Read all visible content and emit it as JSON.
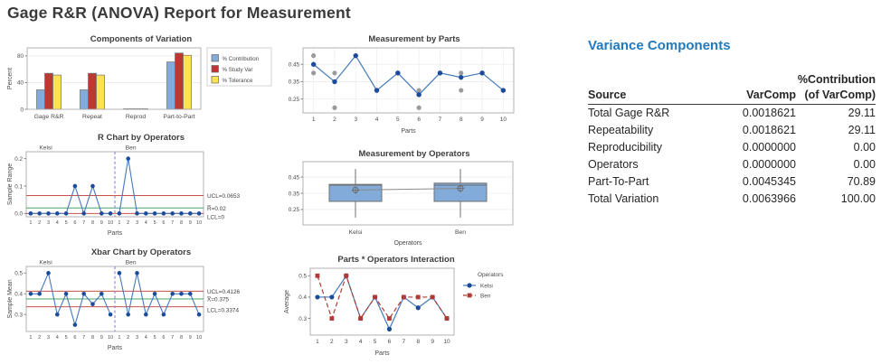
{
  "page_title": "Gage R&R (ANOVA) Report for Measurement",
  "colors": {
    "limit_line_red": "#C8504A",
    "center_line_green": "#48A464",
    "panel_separator_purple": "#8F7FD4",
    "mean_line_blue": "#4579BD",
    "point_navy": "#1A4C9B",
    "measurement_gray": "#9B9B9B",
    "box_fill_blue": "#82ABD9",
    "table_title_blue": "#2279BC"
  },
  "chart_data": [
    {
      "id": "components_of_variation",
      "type": "bar",
      "title": "Components of Variation",
      "ylabel": "Percent",
      "categories": [
        "Gage R&R",
        "Repeat",
        "Reprod",
        "Part-to-Part"
      ],
      "series": [
        {
          "name": "% Contribution",
          "color": "#82ABD9",
          "values": [
            29.11,
            29.11,
            0.0,
            70.89
          ]
        },
        {
          "name": "% Study Var",
          "color": "#C03730",
          "values": [
            53.95,
            53.95,
            0.2,
            84.2
          ]
        },
        {
          "name": "% Tolerance",
          "color": "#FFE152",
          "values": [
            51.3,
            51.3,
            0.2,
            80.9
          ]
        }
      ],
      "yticks": [
        0,
        40,
        80
      ],
      "ytick_labels": [
        "0",
        "40",
        "80"
      ],
      "ylim": [
        0,
        92
      ],
      "legend_position": "right"
    },
    {
      "id": "measurement_by_parts",
      "type": "scatter-line",
      "title": "Measurement by Parts",
      "xlabel": "Parts",
      "x": [
        1,
        2,
        3,
        4,
        5,
        6,
        7,
        8,
        9,
        10
      ],
      "measurements": [
        [
          0.4,
          0.5
        ],
        [
          0.2,
          0.4
        ],
        [
          0.5
        ],
        [
          0.3
        ],
        [
          0.4
        ],
        [
          0.2,
          0.3
        ],
        [
          0.4
        ],
        [
          0.3,
          0.4
        ],
        [
          0.4
        ],
        [
          0.3
        ]
      ],
      "means": [
        0.45,
        0.35,
        0.5,
        0.3,
        0.4,
        0.275,
        0.4,
        0.375,
        0.4,
        0.3
      ],
      "yticks": [
        0.25,
        0.35,
        0.45
      ],
      "ytick_labels": [
        "0.25",
        "0.35",
        "0.45"
      ],
      "ylim": [
        0.17,
        0.545
      ],
      "grid": true
    },
    {
      "id": "r_chart_by_operators",
      "type": "control",
      "title": "R Chart by Operators",
      "ylabel": "Sample Range",
      "xlabel": "Parts",
      "panels": [
        "Kelsi",
        "Ben"
      ],
      "x_per_panel": [
        1,
        2,
        3,
        4,
        5,
        6,
        7,
        8,
        9,
        10
      ],
      "series": [
        [
          0,
          0,
          0,
          0,
          0,
          0.1,
          0,
          0.1,
          0,
          0
        ],
        [
          0,
          0.2,
          0,
          0,
          0,
          0,
          0,
          0,
          0,
          0
        ]
      ],
      "ucl": 0.0653,
      "center": 0.02,
      "lcl": 0,
      "limit_labels": [
        "UCL=0.0653",
        "R̅=0.02",
        "LCL=0"
      ],
      "yticks": [
        0.0,
        0.1,
        0.2
      ],
      "ytick_labels": [
        "0.0",
        "0.1",
        "0.2"
      ],
      "ylim": [
        -0.012,
        0.225
      ]
    },
    {
      "id": "xbar_chart_by_operators",
      "type": "control",
      "title": "Xbar Chart by Operators",
      "ylabel": "Sample Mean",
      "xlabel": "Parts",
      "panels": [
        "Kelsi",
        "Ben"
      ],
      "x_per_panel": [
        1,
        2,
        3,
        4,
        5,
        6,
        7,
        8,
        9,
        10
      ],
      "series": [
        [
          0.4,
          0.4,
          0.5,
          0.3,
          0.4,
          0.25,
          0.4,
          0.35,
          0.4,
          0.3
        ],
        [
          0.5,
          0.3,
          0.5,
          0.3,
          0.4,
          0.3,
          0.4,
          0.4,
          0.4,
          0.3
        ]
      ],
      "ucl": 0.4126,
      "center": 0.375,
      "lcl": 0.3374,
      "limit_labels": [
        "UCL=0.4126",
        "X̅=0.375",
        "LCL=0.3374"
      ],
      "yticks": [
        0.3,
        0.4,
        0.5
      ],
      "ytick_labels": [
        "0.3",
        "0.4",
        "0.5"
      ],
      "ylim": [
        0.218,
        0.532
      ]
    },
    {
      "id": "measurement_by_operators",
      "type": "boxplot",
      "title": "Measurement by Operators",
      "xlabel": "Operators",
      "categories": [
        "Kelsi",
        "Ben"
      ],
      "boxes": [
        {
          "whisker_low": 0.2,
          "q1": 0.3,
          "median": 0.4,
          "q3": 0.405,
          "whisker_high": 0.5,
          "mean": 0.37
        },
        {
          "whisker_low": 0.2,
          "q1": 0.3,
          "median": 0.4,
          "q3": 0.4125,
          "whisker_high": 0.5,
          "mean": 0.38
        }
      ],
      "yticks": [
        0.25,
        0.35,
        0.45
      ],
      "ytick_labels": [
        "0.25",
        "0.35",
        "0.45"
      ],
      "ylim": [
        0.155,
        0.545
      ]
    },
    {
      "id": "parts_operators_interaction",
      "type": "line",
      "title": "Parts * Operators Interaction",
      "ylabel": "Average",
      "xlabel": "Parts",
      "x": [
        1,
        2,
        3,
        4,
        5,
        6,
        7,
        8,
        9,
        10
      ],
      "legend_title": "Operators",
      "series": [
        {
          "name": "Kelsi",
          "color": "#1A4C9B",
          "line_color": "#4579BD",
          "marker": "circle",
          "dash": "solid",
          "values": [
            0.4,
            0.4,
            0.5,
            0.3,
            0.4,
            0.25,
            0.4,
            0.35,
            0.4,
            0.3
          ]
        },
        {
          "name": "Ben",
          "color": "#AE3B34",
          "line_color": "#AE3B34",
          "marker": "square",
          "dash": "dashed",
          "values": [
            0.5,
            0.3,
            0.5,
            0.3,
            0.4,
            0.3,
            0.4,
            0.4,
            0.4,
            0.3
          ]
        }
      ],
      "yticks": [
        0.3,
        0.4,
        0.5
      ],
      "ytick_labels": [
        "0.3",
        "0.4",
        "0.5"
      ],
      "ylim": [
        0.222,
        0.535
      ]
    }
  ],
  "table": {
    "title": "Variance Components",
    "headers": {
      "contribution_line1": "%Contribution",
      "source": "Source",
      "varcomp": "VarComp",
      "contribution_line2": "(of VarComp)"
    },
    "rows": [
      {
        "source": "Total Gage R&R",
        "varcomp": "0.0018621",
        "contribution": "29.11"
      },
      {
        "source": "Repeatability",
        "varcomp": "0.0018621",
        "contribution": "29.11"
      },
      {
        "source": "Reproducibility",
        "varcomp": "0.0000000",
        "contribution": "0.00"
      },
      {
        "source": "Operators",
        "varcomp": "0.0000000",
        "contribution": "0.00"
      },
      {
        "source": "Part-To-Part",
        "varcomp": "0.0045345",
        "contribution": "70.89"
      },
      {
        "source": "Total Variation",
        "varcomp": "0.0063966",
        "contribution": "100.00"
      }
    ]
  }
}
